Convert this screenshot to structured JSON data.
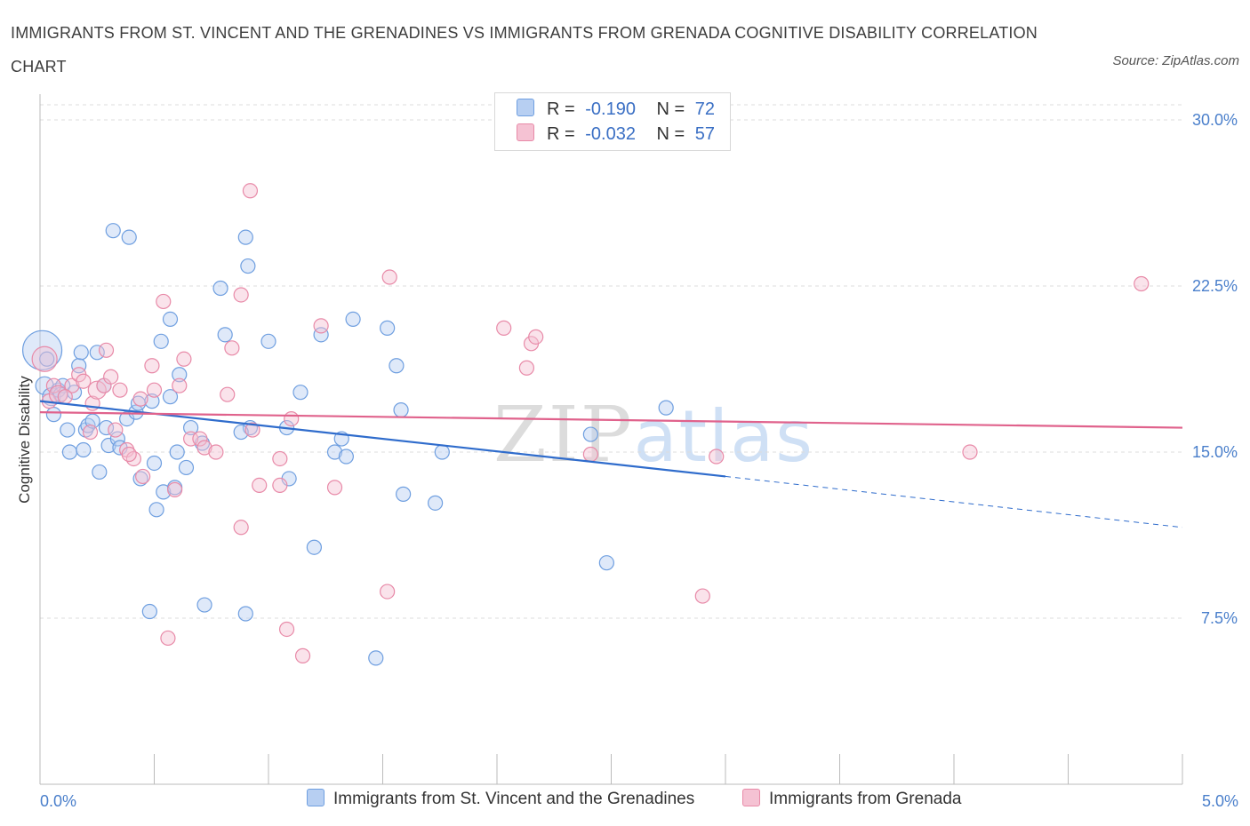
{
  "title": "IMMIGRANTS FROM ST. VINCENT AND THE GRENADINES VS IMMIGRANTS FROM GRENADA COGNITIVE DISABILITY CORRELATION CHART",
  "source": "Source: ZipAtlas.com",
  "watermark": {
    "zip": "ZIP",
    "atlas": "atlas"
  },
  "legend": {
    "series1": {
      "r_label": "R =",
      "r_value": "-0.190",
      "n_label": "N =",
      "n_value": "72"
    },
    "series2": {
      "r_label": "R =",
      "r_value": "-0.032",
      "n_label": "N =",
      "n_value": "57"
    }
  },
  "colors": {
    "blue": "#6f9fe0",
    "blue_fill": "#b7cff2",
    "blue_line": "#2f6ccc",
    "pink": "#e88aa8",
    "pink_fill": "#f5c2d3",
    "pink_line": "#e0628c",
    "tick_text": "#4a7fcb",
    "grid": "#dcdcdc"
  },
  "chart_data": {
    "type": "scatter",
    "xlabel": "",
    "ylabel": "Cognitive Disability",
    "xlim": [
      0,
      5
    ],
    "ylim": [
      0,
      30
    ],
    "x_tick_labels": [
      "0.0%",
      "5.0%"
    ],
    "y_tick_labels": [
      "7.5%",
      "15.0%",
      "22.5%",
      "30.0%"
    ],
    "y_ticks": [
      7.5,
      15,
      22.5,
      30
    ],
    "legend_position": "top-center",
    "series": [
      {
        "name": "Immigrants from St. Vincent and the Grenadines",
        "color": "#6f9fe0",
        "trend": {
          "x0": 0.0,
          "y0": 17.3,
          "x1": 3.0,
          "y1": 13.9,
          "x_dash_end": 5.0,
          "y_dash_end": 11.6
        },
        "points": [
          [
            0.01,
            19.6,
            22
          ],
          [
            0.02,
            18.0,
            10
          ],
          [
            0.05,
            17.5,
            10
          ],
          [
            0.06,
            16.7,
            8
          ],
          [
            0.08,
            17.8,
            8
          ],
          [
            0.1,
            18.0,
            8
          ],
          [
            0.12,
            16.0,
            8
          ],
          [
            0.13,
            15.0,
            8
          ],
          [
            0.15,
            17.7,
            8
          ],
          [
            0.17,
            18.9,
            8
          ],
          [
            0.18,
            19.5,
            8
          ],
          [
            0.19,
            15.1,
            8
          ],
          [
            0.2,
            16.0,
            8
          ],
          [
            0.21,
            16.2,
            8
          ],
          [
            0.23,
            16.4,
            8
          ],
          [
            0.25,
            19.5,
            8
          ],
          [
            0.26,
            14.1,
            8
          ],
          [
            0.28,
            18.0,
            8
          ],
          [
            0.29,
            16.1,
            8
          ],
          [
            0.3,
            15.3,
            8
          ],
          [
            0.32,
            25.0,
            8
          ],
          [
            0.34,
            15.6,
            8
          ],
          [
            0.35,
            15.2,
            8
          ],
          [
            0.38,
            16.5,
            8
          ],
          [
            0.39,
            24.7,
            8
          ],
          [
            0.42,
            16.8,
            8
          ],
          [
            0.43,
            17.2,
            8
          ],
          [
            0.44,
            13.8,
            8
          ],
          [
            0.48,
            7.8,
            8
          ],
          [
            0.49,
            17.3,
            8
          ],
          [
            0.5,
            14.5,
            8
          ],
          [
            0.51,
            12.4,
            8
          ],
          [
            0.53,
            20.0,
            8
          ],
          [
            0.54,
            13.2,
            8
          ],
          [
            0.57,
            21.0,
            8
          ],
          [
            0.57,
            17.5,
            8
          ],
          [
            0.59,
            13.4,
            8
          ],
          [
            0.6,
            15.0,
            8
          ],
          [
            0.61,
            18.5,
            8
          ],
          [
            0.64,
            14.3,
            8
          ],
          [
            0.66,
            16.1,
            8
          ],
          [
            0.71,
            15.4,
            8
          ],
          [
            0.72,
            8.1,
            8
          ],
          [
            0.79,
            22.4,
            8
          ],
          [
            0.81,
            20.3,
            8
          ],
          [
            0.9,
            24.7,
            8
          ],
          [
            0.91,
            23.4,
            8
          ],
          [
            0.92,
            16.1,
            8
          ],
          [
            0.9,
            7.7,
            8
          ],
          [
            0.88,
            15.9,
            8
          ],
          [
            1.0,
            20.0,
            8
          ],
          [
            1.08,
            16.1,
            8
          ],
          [
            1.09,
            13.8,
            8
          ],
          [
            1.14,
            17.7,
            8
          ],
          [
            1.2,
            10.7,
            8
          ],
          [
            1.23,
            20.3,
            8
          ],
          [
            1.29,
            15.0,
            8
          ],
          [
            1.32,
            15.6,
            8
          ],
          [
            1.34,
            14.8,
            8
          ],
          [
            1.37,
            21.0,
            8
          ],
          [
            1.47,
            5.7,
            8
          ],
          [
            1.52,
            20.6,
            8
          ],
          [
            1.56,
            18.9,
            8
          ],
          [
            1.58,
            16.9,
            8
          ],
          [
            1.59,
            13.1,
            8
          ],
          [
            1.73,
            12.7,
            8
          ],
          [
            1.76,
            15.0,
            8
          ],
          [
            2.41,
            15.8,
            8
          ],
          [
            2.48,
            10.0,
            8
          ],
          [
            2.74,
            17.0,
            8
          ],
          [
            0.03,
            19.2,
            8
          ],
          [
            0.09,
            17.6,
            8
          ]
        ]
      },
      {
        "name": "Immigrants from Grenada",
        "color": "#e88aa8",
        "trend": {
          "x0": 0.0,
          "y0": 16.8,
          "x1": 5.0,
          "y1": 16.1
        },
        "points": [
          [
            0.02,
            19.2,
            14
          ],
          [
            0.04,
            17.3,
            8
          ],
          [
            0.06,
            18.0,
            8
          ],
          [
            0.08,
            17.6,
            10
          ],
          [
            0.14,
            18.0,
            8
          ],
          [
            0.17,
            18.5,
            8
          ],
          [
            0.19,
            18.2,
            8
          ],
          [
            0.22,
            15.9,
            8
          ],
          [
            0.23,
            17.2,
            8
          ],
          [
            0.25,
            17.8,
            10
          ],
          [
            0.28,
            18.0,
            8
          ],
          [
            0.29,
            19.6,
            8
          ],
          [
            0.31,
            18.4,
            8
          ],
          [
            0.33,
            16.0,
            8
          ],
          [
            0.35,
            17.8,
            8
          ],
          [
            0.38,
            15.1,
            8
          ],
          [
            0.41,
            14.7,
            8
          ],
          [
            0.44,
            17.4,
            8
          ],
          [
            0.45,
            13.9,
            8
          ],
          [
            0.49,
            18.9,
            8
          ],
          [
            0.5,
            17.8,
            8
          ],
          [
            0.54,
            21.8,
            8
          ],
          [
            0.56,
            6.6,
            8
          ],
          [
            0.59,
            13.3,
            8
          ],
          [
            0.61,
            18.0,
            8
          ],
          [
            0.63,
            19.2,
            8
          ],
          [
            0.66,
            15.6,
            8
          ],
          [
            0.7,
            15.6,
            8
          ],
          [
            0.72,
            15.2,
            8
          ],
          [
            0.77,
            15.0,
            8
          ],
          [
            0.82,
            17.6,
            8
          ],
          [
            0.84,
            19.7,
            8
          ],
          [
            0.88,
            22.1,
            8
          ],
          [
            0.88,
            11.6,
            8
          ],
          [
            0.93,
            16.0,
            8
          ],
          [
            0.96,
            13.5,
            8
          ],
          [
            0.92,
            26.8,
            8
          ],
          [
            1.05,
            14.7,
            8
          ],
          [
            1.05,
            13.5,
            8
          ],
          [
            1.08,
            7.0,
            8
          ],
          [
            1.1,
            16.5,
            8
          ],
          [
            1.15,
            5.8,
            8
          ],
          [
            1.23,
            20.7,
            8
          ],
          [
            1.29,
            13.4,
            8
          ],
          [
            1.52,
            8.7,
            8
          ],
          [
            1.53,
            22.9,
            8
          ],
          [
            2.03,
            20.6,
            8
          ],
          [
            2.13,
            18.8,
            8
          ],
          [
            2.15,
            19.9,
            8
          ],
          [
            2.17,
            20.2,
            8
          ],
          [
            2.41,
            14.9,
            8
          ],
          [
            2.9,
            8.5,
            8
          ],
          [
            2.96,
            14.8,
            8
          ],
          [
            4.07,
            15.0,
            8
          ],
          [
            4.82,
            22.6,
            8
          ],
          [
            0.11,
            17.5,
            8
          ],
          [
            0.39,
            14.9,
            8
          ]
        ]
      }
    ]
  }
}
